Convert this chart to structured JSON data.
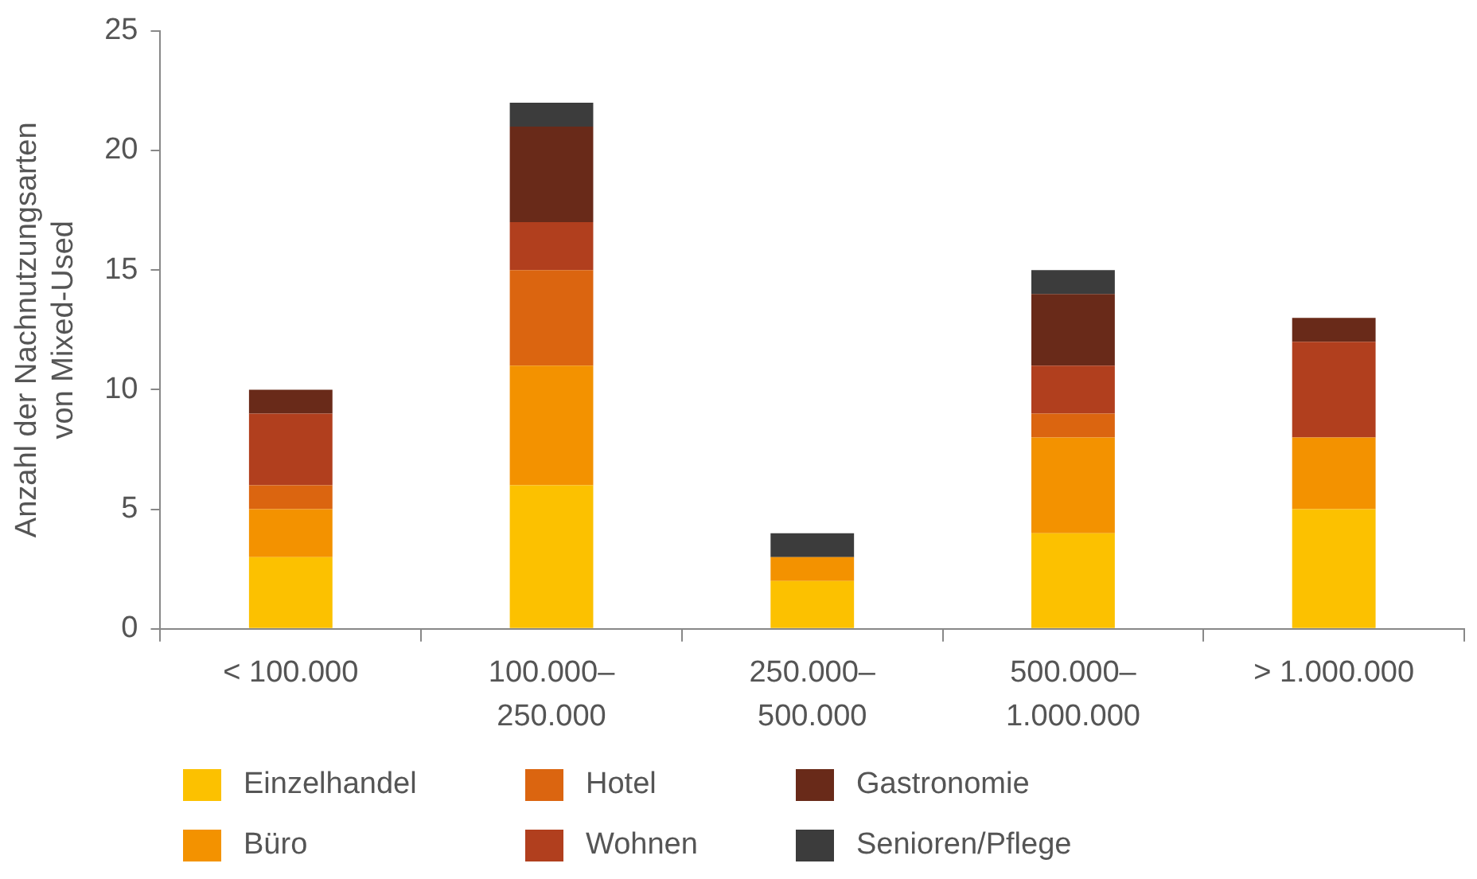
{
  "chart_data": {
    "type": "bar",
    "stacked": true,
    "ylabel": "Anzahl der Nachnutzungsarten\nvon Mixed-Used",
    "categories": [
      "< 100.000",
      "100.000–\n250.000",
      "250.000–\n500.000",
      "500.000–\n1.000.000",
      "> 1.000.000"
    ],
    "ylim": [
      0,
      25
    ],
    "yticks": [
      0,
      5,
      10,
      15,
      20,
      25
    ],
    "grid": false,
    "legend": "bottom",
    "series": [
      {
        "name": "Einzelhandel",
        "color": "#fcc100",
        "values": [
          3,
          6,
          2,
          4,
          5
        ]
      },
      {
        "name": "Büro",
        "color": "#f39200",
        "values": [
          2,
          5,
          1,
          4,
          3
        ]
      },
      {
        "name": "Hotel",
        "color": "#db6510",
        "values": [
          1,
          4,
          0,
          1,
          0
        ]
      },
      {
        "name": "Wohnen",
        "color": "#b13f1e",
        "values": [
          3,
          2,
          0,
          2,
          4
        ]
      },
      {
        "name": "Gastronomie",
        "color": "#692a19",
        "values": [
          1,
          4,
          0,
          3,
          1
        ]
      },
      {
        "name": "Senioren/Pflege",
        "color": "#3c3c3c",
        "values": [
          0,
          1,
          1,
          1,
          0
        ]
      }
    ]
  }
}
